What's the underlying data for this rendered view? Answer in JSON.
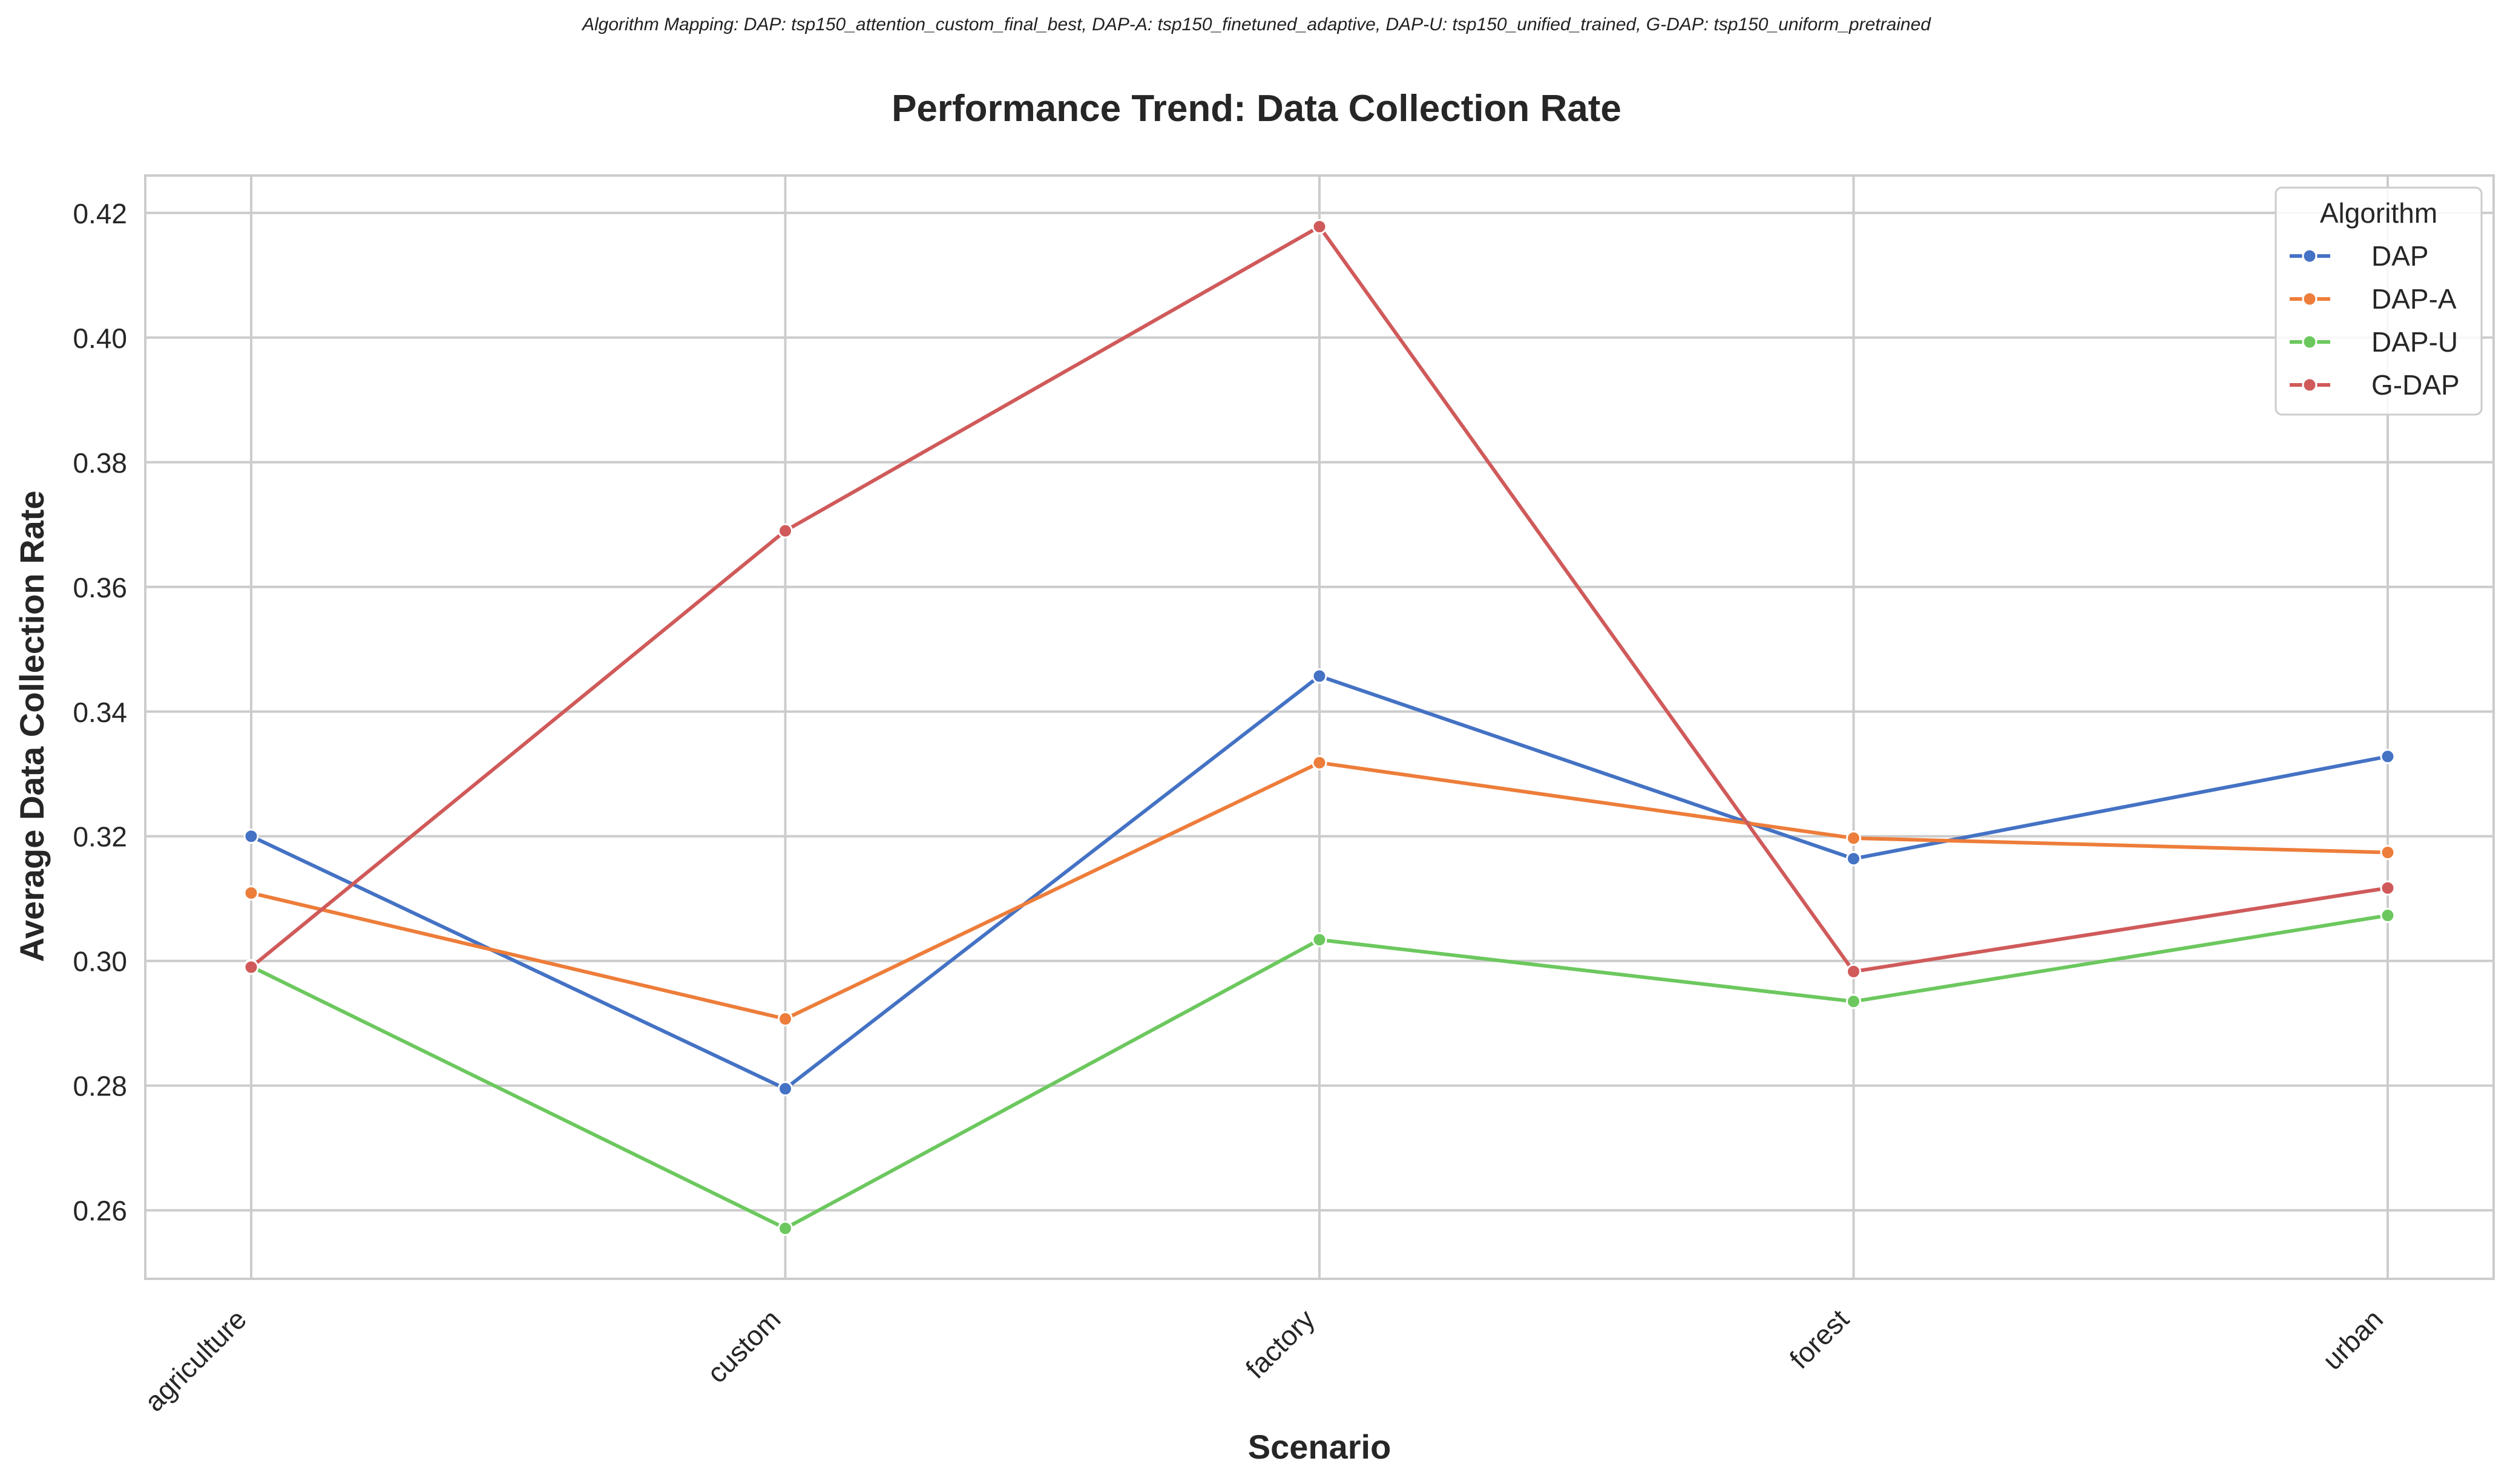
{
  "chart_data": {
    "type": "line",
    "suptitle": "Algorithm Mapping: DAP: tsp150_attention_custom_final_best, DAP-A: tsp150_finetuned_adaptive, DAP-U: tsp150_unified_trained, G-DAP: tsp150_uniform_pretrained",
    "title": "Performance Trend: Data Collection Rate",
    "xlabel": "Scenario",
    "ylabel": "Average Data Collection Rate",
    "categories": [
      "agriculture",
      "custom",
      "factory",
      "forest",
      "urban"
    ],
    "ylim": [
      0.249,
      0.426
    ],
    "yticks": [
      "0.26",
      "0.28",
      "0.30",
      "0.32",
      "0.34",
      "0.36",
      "0.38",
      "0.40",
      "0.42"
    ],
    "grid": true,
    "legend_title": "Algorithm",
    "legend_position": "top-right",
    "series": [
      {
        "name": "DAP",
        "color": "#4472c4",
        "values": [
          0.32,
          0.2795,
          0.3457,
          0.3164,
          0.3328
        ]
      },
      {
        "name": "DAP-A",
        "color": "#ed7d3a",
        "values": [
          0.3109,
          0.2907,
          0.3318,
          0.3197,
          0.3174
        ]
      },
      {
        "name": "DAP-U",
        "color": "#6cc85e",
        "values": [
          0.2991,
          0.2571,
          0.3034,
          0.2935,
          0.3073
        ]
      },
      {
        "name": "G-DAP",
        "color": "#d05a5a",
        "values": [
          0.299,
          0.369,
          0.4178,
          0.2983,
          0.3117
        ]
      }
    ]
  }
}
